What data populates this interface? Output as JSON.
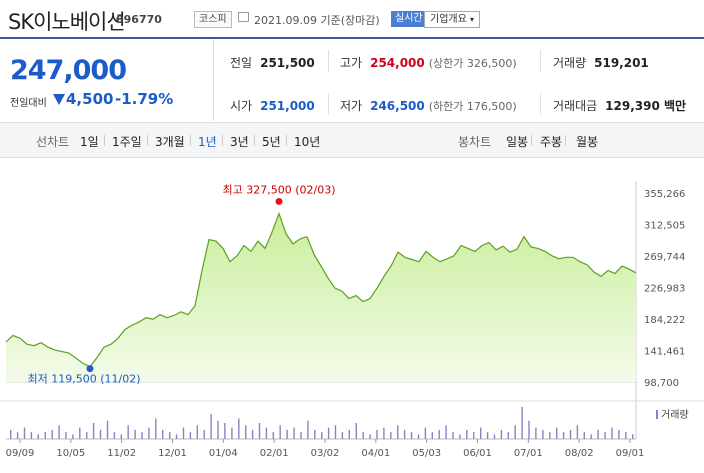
{
  "header": {
    "company_name": "SK이노베이션",
    "stock_code": "096770",
    "market_badge": "코스피",
    "calendar_icon": "calendar-icon",
    "date_text": "2021.09.09 기준(장마감)",
    "realtime_button": "실시간",
    "company_info_button": "기업개요"
  },
  "quote": {
    "current_price": "247,000",
    "change_label": "전일대비",
    "change_direction": "down",
    "change_value": "4,500",
    "change_percent": "-1.79%",
    "prev_close_label": "전일",
    "prev_close": "251,500",
    "high_label": "고가",
    "high": "254,000",
    "upper_limit": "(상한가 326,500)",
    "volume_label": "거래량",
    "volume": "519,201",
    "open_label": "시가",
    "open": "251,000",
    "low_label": "저가",
    "low": "246,500",
    "lower_limit": "(하한가 176,500)",
    "amount_label": "거래대금",
    "amount": "129,390 백만"
  },
  "tabs": {
    "line_label": "선차트",
    "line_periods": [
      "1일",
      "1주일",
      "3개월",
      "1년",
      "3년",
      "5년",
      "10년"
    ],
    "active_period": "1년",
    "candle_label": "봉차트",
    "candle_periods": [
      "일봉",
      "주봉",
      "월봉"
    ]
  },
  "colors": {
    "up": "#d0021b",
    "down": "#1c5cc8",
    "line": "#5aa020",
    "fill_top": "#c9ee9a",
    "fill_bottom": "#f4fbea",
    "volume": "#8a82c0"
  },
  "chart_data": {
    "type": "area",
    "y_ticks": [
      "355,266",
      "312,505",
      "269,744",
      "226,983",
      "184,222",
      "141,461",
      "98,700"
    ],
    "ylim": [
      98700,
      355266
    ],
    "x_ticks": [
      "09/09",
      "10/05",
      "11/02",
      "12/01",
      "01/04",
      "02/01",
      "03/02",
      "04/01",
      "05/03",
      "06/01",
      "07/01",
      "08/02",
      "09/01"
    ],
    "max_annotation": "최고 327,500 (02/03)",
    "min_annotation": "최저 119,500 (11/02)",
    "volume_label": "거래량",
    "price": [
      [
        "09/09",
        153000
      ],
      [
        "09/14",
        162000
      ],
      [
        "09/18",
        158000
      ],
      [
        "09/23",
        150000
      ],
      [
        "09/28",
        148000
      ],
      [
        "10/05",
        152000
      ],
      [
        "10/08",
        146000
      ],
      [
        "10/13",
        142000
      ],
      [
        "10/16",
        140000
      ],
      [
        "10/21",
        138000
      ],
      [
        "10/26",
        131000
      ],
      [
        "10/29",
        124000
      ],
      [
        "11/02",
        119500
      ],
      [
        "11/05",
        132000
      ],
      [
        "11/10",
        146000
      ],
      [
        "11/13",
        150000
      ],
      [
        "11/18",
        158000
      ],
      [
        "11/23",
        170000
      ],
      [
        "11/27",
        176000
      ],
      [
        "12/01",
        180000
      ],
      [
        "12/04",
        186000
      ],
      [
        "12/09",
        184000
      ],
      [
        "12/14",
        190000
      ],
      [
        "12/17",
        186000
      ],
      [
        "12/22",
        189000
      ],
      [
        "12/28",
        194000
      ],
      [
        "12/30",
        190000
      ],
      [
        "01/04",
        202000
      ],
      [
        "01/06",
        250000
      ],
      [
        "01/08",
        292000
      ],
      [
        "01/11",
        290000
      ],
      [
        "01/13",
        280000
      ],
      [
        "01/15",
        262000
      ],
      [
        "01/19",
        270000
      ],
      [
        "01/21",
        284000
      ],
      [
        "01/25",
        276000
      ],
      [
        "01/27",
        290000
      ],
      [
        "01/29",
        280000
      ],
      [
        "02/01",
        302000
      ],
      [
        "02/03",
        327500
      ],
      [
        "02/05",
        300000
      ],
      [
        "02/09",
        286000
      ],
      [
        "02/15",
        293000
      ],
      [
        "02/18",
        296000
      ],
      [
        "02/22",
        272000
      ],
      [
        "02/25",
        256000
      ],
      [
        "03/02",
        240000
      ],
      [
        "03/05",
        226000
      ],
      [
        "03/09",
        222000
      ],
      [
        "03/12",
        212000
      ],
      [
        "03/16",
        216000
      ],
      [
        "03/19",
        208000
      ],
      [
        "03/24",
        212000
      ],
      [
        "03/29",
        226000
      ],
      [
        "04/01",
        242000
      ],
      [
        "04/05",
        256000
      ],
      [
        "04/09",
        275000
      ],
      [
        "04/14",
        268000
      ],
      [
        "04/19",
        265000
      ],
      [
        "04/23",
        262000
      ],
      [
        "04/28",
        276000
      ],
      [
        "05/03",
        268000
      ],
      [
        "05/07",
        262000
      ],
      [
        "05/12",
        266000
      ],
      [
        "05/17",
        270000
      ],
      [
        "05/21",
        284000
      ],
      [
        "05/26",
        280000
      ],
      [
        "06/01",
        276000
      ],
      [
        "06/04",
        284000
      ],
      [
        "06/09",
        288000
      ],
      [
        "06/14",
        278000
      ],
      [
        "06/18",
        283000
      ],
      [
        "06/23",
        275000
      ],
      [
        "06/28",
        279000
      ],
      [
        "07/01",
        296000
      ],
      [
        "07/05",
        282000
      ],
      [
        "07/09",
        280000
      ],
      [
        "07/14",
        276000
      ],
      [
        "07/19",
        270000
      ],
      [
        "07/23",
        266000
      ],
      [
        "07/28",
        268000
      ],
      [
        "08/02",
        268000
      ],
      [
        "08/06",
        262000
      ],
      [
        "08/11",
        258000
      ],
      [
        "08/16",
        248000
      ],
      [
        "08/19",
        242000
      ],
      [
        "08/24",
        250000
      ],
      [
        "08/27",
        246000
      ],
      [
        "09/01",
        256000
      ],
      [
        "09/06",
        252000
      ],
      [
        "09/09",
        247000
      ]
    ],
    "volume_relative": [
      4,
      3,
      5,
      3,
      2,
      3,
      4,
      6,
      3,
      2,
      5,
      3,
      7,
      4,
      8,
      3,
      2,
      6,
      4,
      3,
      5,
      9,
      4,
      3,
      2,
      5,
      3,
      6,
      4,
      11,
      8,
      7,
      5,
      9,
      6,
      4,
      7,
      5,
      3,
      6,
      4,
      5,
      3,
      8,
      4,
      3,
      5,
      6,
      3,
      4,
      7,
      3,
      2,
      4,
      5,
      3,
      6,
      4,
      3,
      2,
      5,
      3,
      4,
      6,
      3,
      2,
      4,
      3,
      5,
      3,
      2,
      4,
      3,
      6,
      14,
      8,
      5,
      4,
      3,
      5,
      3,
      4,
      6,
      3,
      2,
      4,
      3,
      5,
      4,
      3,
      2
    ]
  }
}
